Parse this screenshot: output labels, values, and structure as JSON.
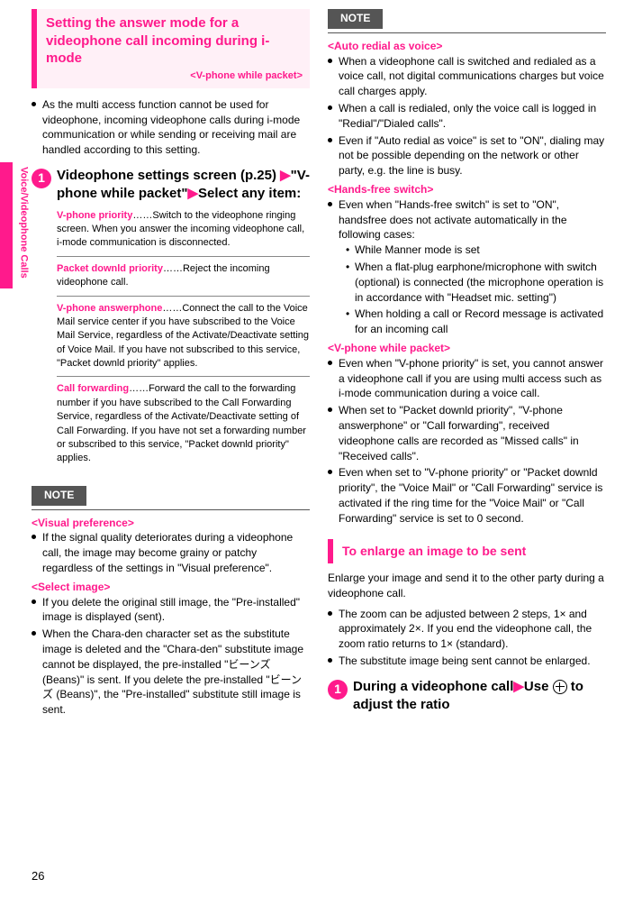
{
  "side_label": "Voice/Videophone Calls",
  "page_number": "26",
  "col1": {
    "title": "Setting the answer mode for a videophone call incoming during i-mode",
    "title_tag": "<V-phone while packet>",
    "intro": "As the multi access function cannot be used for videophone, incoming videophone calls during i-mode communication or while sending or receiving mail are handled according to this setting.",
    "step1a": "Videophone settings screen (p.25)",
    "step1b": "\"V-phone while packet\"",
    "step1c": "Select any item:",
    "opt1_name": "V-phone priority",
    "opt1_text": "……Switch to the videophone ringing screen. When you answer the incoming videophone call, i-mode communication is disconnected.",
    "opt2_name": "Packet downld priority",
    "opt2_text": "……Reject the incoming videophone call.",
    "opt3_name": "V-phone answerphone",
    "opt3_text": "……Connect the call to the Voice Mail service center if you have subscribed to the Voice Mail Service, regardless of the Activate/Deactivate setting of Voice Mail. If you have not subscribed to this service, \"Packet downld priority\" applies.",
    "opt4_name": "Call forwarding",
    "opt4_text": "……Forward the call to the forwarding number if you have subscribed to the Call Forwarding Service, regardless of the Activate/Deactivate setting of Call Forwarding. If you have not set a forwarding number or subscribed to this service, \"Packet downld priority\" applies.",
    "note_label": "NOTE",
    "note_h1": "<Visual preference>",
    "note_b1": "If the signal quality deteriorates during a videophone call, the image may become grainy or patchy regardless of the settings in \"Visual preference\".",
    "note_h2": "<Select image>",
    "note_b2": "If you delete the original still image, the \"Pre-installed\" image is displayed (sent).",
    "note_b3": "When the Chara-den character set as the substitute image is deleted and the \"Chara-den\" substitute image cannot be displayed, the pre-installed \"ビーンズ (Beans)\" is sent. If you delete the pre-installed \"ビーンズ (Beans)\", the \"Pre-installed\" substitute still image is sent."
  },
  "col2": {
    "note_label": "NOTE",
    "h1": "<Auto redial as voice>",
    "b1": "When a videophone call is switched and redialed as a voice call, not digital communications charges but voice call charges apply.",
    "b2": "When a call is redialed, only the voice call is logged in \"Redial\"/\"Dialed calls\".",
    "b3": "Even if \"Auto redial as voice\" is set to \"ON\", dialing may not be possible depending on the network or other party, e.g. the line is busy.",
    "h2": "<Hands-free switch>",
    "b4": "Even when \"Hands-free switch\" is set to \"ON\", handsfree does not activate automatically in the following cases:",
    "b4a": "While Manner mode is set",
    "b4b": "When a flat-plug earphone/microphone with switch (optional) is connected (the microphone operation is in accordance with \"Headset mic. setting\")",
    "b4c": "When holding a call or Record message is activated for an incoming call",
    "h3": "<V-phone while packet>",
    "b5": "Even when \"V-phone priority\" is set, you cannot answer a videophone call if you are using multi access such as i-mode communication during a voice call.",
    "b6": "When set to \"Packet downld priority\", \"V-phone answerphone\" or \"Call forwarding\", received videophone calls are recorded as \"Missed calls\" in \"Received calls\".",
    "b7": "Even when set to \"V-phone priority\" or \"Packet downld priority\", the \"Voice Mail\" or \"Call Forwarding\" service is activated if the ring time for the \"Voice Mail\" or \"Call Forwarding\" service is set to 0 second.",
    "title2": "To enlarge an image to be sent",
    "p1": "Enlarge your image and send it to the other party during a videophone call.",
    "p2": "The zoom can be adjusted between 2 steps, 1× and approximately 2×. If you end the videophone call, the zoom ratio returns to 1× (standard).",
    "p3": "The substitute image being sent cannot be enlarged.",
    "step1a": "During a videophone call",
    "step1b": "Use",
    "step1c": "to adjust the ratio"
  }
}
